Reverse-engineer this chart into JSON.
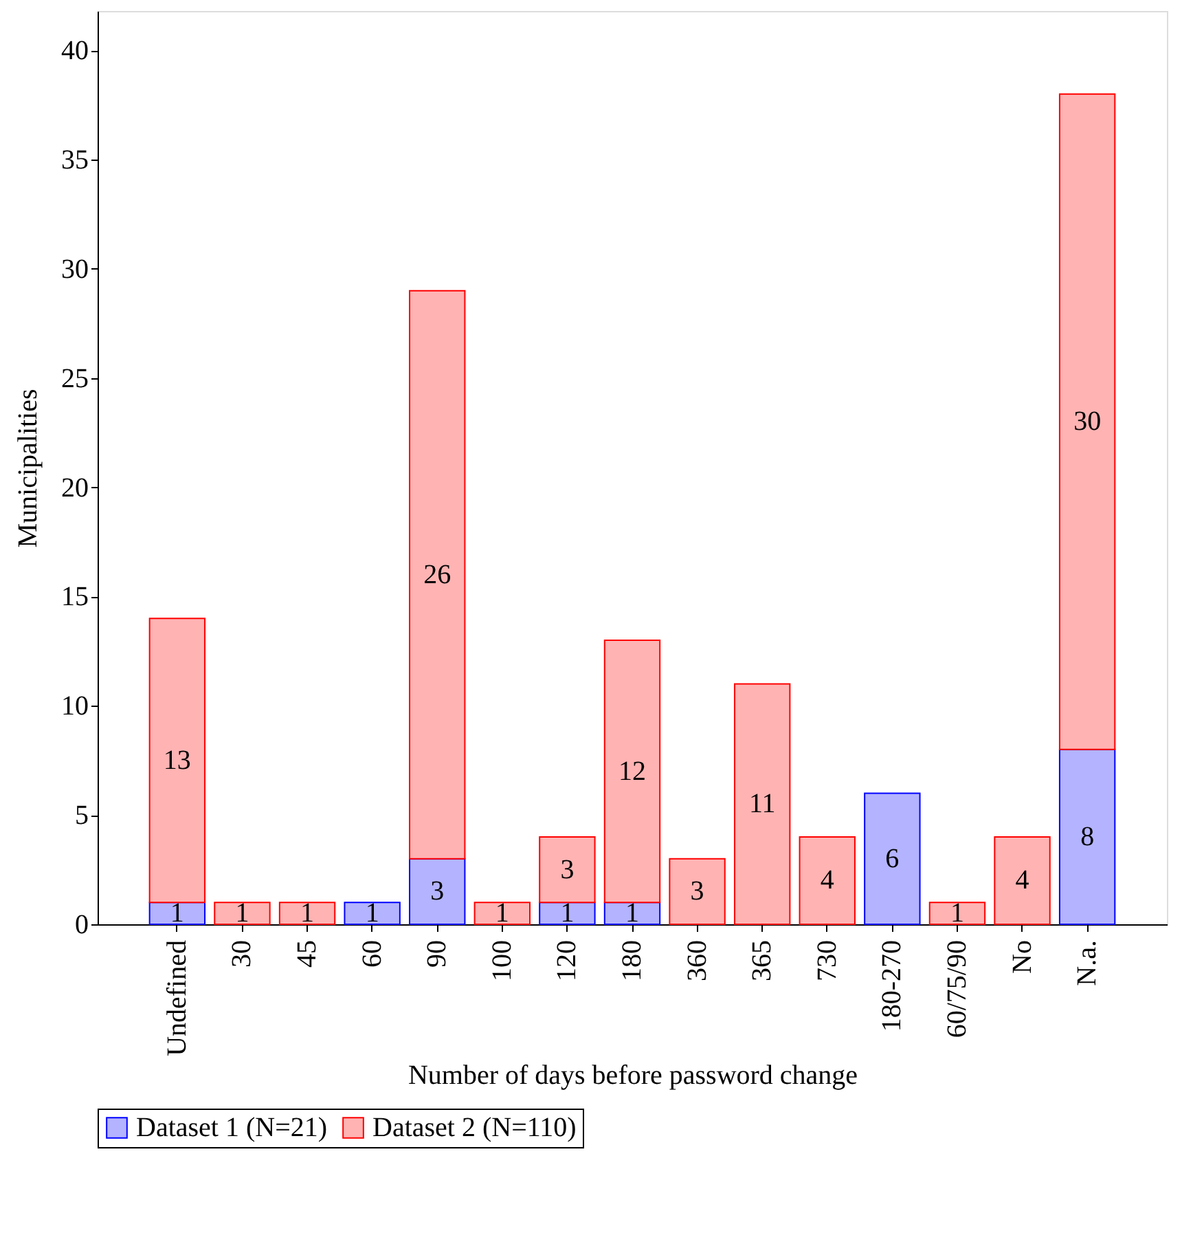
{
  "chart_data": {
    "type": "bar",
    "stacked": true,
    "categories": [
      "Undefined",
      "30",
      "45",
      "60",
      "90",
      "100",
      "120",
      "180",
      "360",
      "365",
      "730",
      "180-270",
      "60/75/90",
      "No",
      "N.a."
    ],
    "series": [
      {
        "name": "Dataset 1 (N=21)",
        "color": "#b3b3ff",
        "values": [
          1,
          null,
          null,
          1,
          3,
          null,
          1,
          1,
          null,
          null,
          null,
          6,
          null,
          null,
          8
        ]
      },
      {
        "name": "Dataset 2 (N=110)",
        "color": "#ffb3b3",
        "values": [
          13,
          1,
          1,
          null,
          26,
          1,
          3,
          12,
          3,
          11,
          4,
          null,
          1,
          4,
          30
        ]
      }
    ],
    "xlabel": "Number of days before password change",
    "ylabel": "Municipalities",
    "ylim": [
      0,
      41.8
    ],
    "yticks": [
      0,
      5,
      10,
      15,
      20,
      25,
      30,
      35,
      40
    ],
    "data_labels": true,
    "legend": "bottom",
    "grid": false
  }
}
